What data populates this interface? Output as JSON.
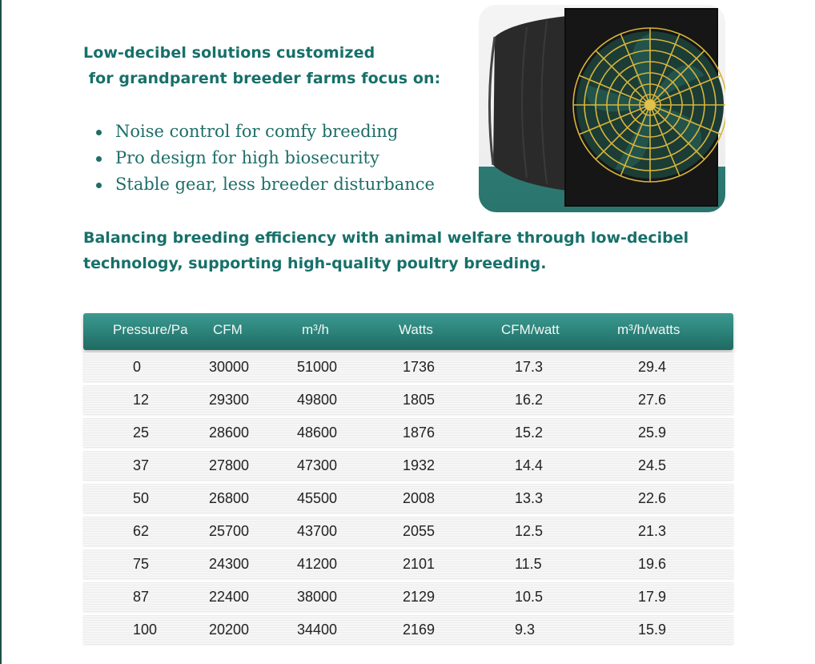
{
  "intro": {
    "lines": [
      "Low-decibel solutions customized",
      " for grandparent breeder farms focus on:"
    ]
  },
  "bullets": [
    "Noise control for comfy breeding",
    "Pro design for high biosecurity",
    "Stable gear, less breeder disturbance"
  ],
  "summary": {
    "lines": [
      "Balancing breeding efficiency with animal welfare through low-decibel",
      "technology, supporting high-quality poultry breeding."
    ]
  },
  "product_image": {
    "icon": "exhaust-fan-icon"
  },
  "colors": {
    "brand_teal": "#17706a",
    "header_teal": "#2b8077",
    "fan_guard_yellow": "#d7b53a"
  },
  "table": {
    "headers": [
      "Pressure/Pa",
      "CFM",
      "m³/h",
      "Watts",
      "CFM/watt",
      "m³/h/watts"
    ],
    "rows": [
      [
        "0",
        "30000",
        "51000",
        "1736",
        "17.3",
        "29.4"
      ],
      [
        "12",
        "29300",
        "49800",
        "1805",
        "16.2",
        "27.6"
      ],
      [
        "25",
        "28600",
        "48600",
        "1876",
        "15.2",
        "25.9"
      ],
      [
        "37",
        "27800",
        "47300",
        "1932",
        "14.4",
        "24.5"
      ],
      [
        "50",
        "26800",
        "45500",
        "2008",
        "13.3",
        "22.6"
      ],
      [
        "62",
        "25700",
        "43700",
        "2055",
        "12.5",
        "21.3"
      ],
      [
        "75",
        "24300",
        "41200",
        "2101",
        "11.5",
        "19.6"
      ],
      [
        "87",
        "22400",
        "38000",
        "2129",
        "10.5",
        "17.9"
      ],
      [
        "100",
        "20200",
        "34400",
        "2169",
        "9.3",
        "15.9"
      ]
    ]
  }
}
